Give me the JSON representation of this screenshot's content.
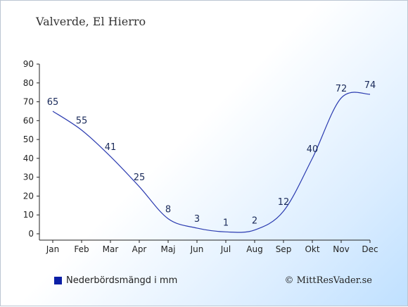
{
  "title": "Valverde, El Hierro",
  "legend_label": "Nederbördsmängd i mm",
  "copyright": "© MittResVader.se",
  "colors": {
    "line": "#2b3bb0",
    "legend_swatch": "#0b1fa6"
  },
  "chart_data": {
    "type": "line",
    "title": "Valverde, El Hierro",
    "xlabel": "",
    "ylabel": "",
    "categories": [
      "Jan",
      "Feb",
      "Mar",
      "Apr",
      "Maj",
      "Jun",
      "Jul",
      "Aug",
      "Sep",
      "Okt",
      "Nov",
      "Dec"
    ],
    "series": [
      {
        "name": "Nederbördsmängd i mm",
        "values": [
          65,
          55,
          41,
          25,
          8,
          3,
          1,
          2,
          12,
          40,
          72,
          74
        ]
      }
    ],
    "ylim": [
      0,
      90
    ],
    "yticks": [
      0,
      10,
      20,
      30,
      40,
      50,
      60,
      70,
      80,
      90
    ],
    "grid": false,
    "legend": "bottom-left"
  }
}
